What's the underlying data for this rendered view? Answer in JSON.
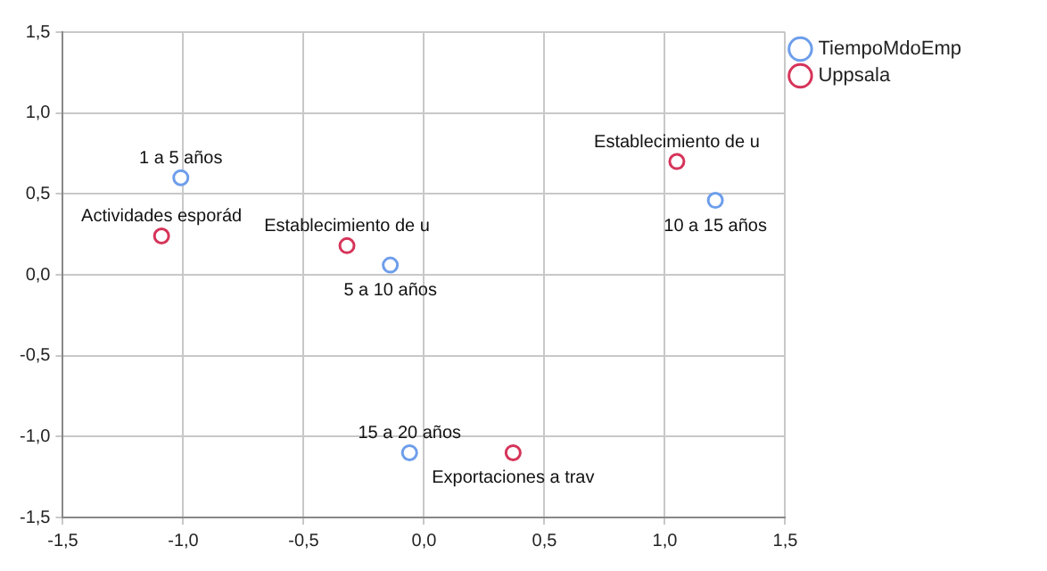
{
  "chart_data": {
    "type": "scatter",
    "xlim": [
      -1.5,
      1.5
    ],
    "ylim": [
      -1.5,
      1.5
    ],
    "xticks": [
      {
        "value": -1.5,
        "label": "-1,5"
      },
      {
        "value": -1,
        "label": "-1,0"
      },
      {
        "value": -0.5,
        "label": "-0,5"
      },
      {
        "value": 0,
        "label": "0,0"
      },
      {
        "value": 0.5,
        "label": "0,5"
      },
      {
        "value": 1,
        "label": "1,0"
      },
      {
        "value": 1.5,
        "label": "1,5"
      }
    ],
    "yticks": [
      {
        "value": -1.5,
        "label": "-1,5"
      },
      {
        "value": -1,
        "label": "-1,0"
      },
      {
        "value": -0.5,
        "label": "-0,5"
      },
      {
        "value": 0,
        "label": "0,0"
      },
      {
        "value": 0.5,
        "label": "0,5"
      },
      {
        "value": 1,
        "label": "1,0"
      },
      {
        "value": 1.5,
        "label": "1,5"
      }
    ],
    "grid": true,
    "legend": "top right",
    "marker": "circle",
    "series": [
      {
        "name": "TiempoMdoEmp",
        "color": "#6d9eeb",
        "x": [
          -1.01,
          -0.14,
          1.21,
          -0.06
        ],
        "values": [
          0.6,
          0.06,
          0.46,
          -1.1
        ]
      },
      {
        "name": "Uppsala",
        "color": "#d6345a",
        "x": [
          -1.09,
          -0.32,
          1.05,
          0.37
        ],
        "values": [
          0.24,
          0.18,
          0.7,
          -1.1
        ]
      }
    ],
    "annotations": [
      {
        "text": "1 a 5 años",
        "x": -1.01,
        "y": 0.6
      },
      {
        "text": "5 a 10 años",
        "x": -0.14,
        "y": 0.06
      },
      {
        "text": "10 a 15 años",
        "x": 1.21,
        "y": 0.46
      },
      {
        "text": "15 a 20 años",
        "x": -0.06,
        "y": -1.1
      },
      {
        "text": "Actividades esporád",
        "x": -1.09,
        "y": 0.24
      },
      {
        "text": "Establecimiento de u",
        "x": -0.32,
        "y": 0.18
      },
      {
        "text": "Establecimiento de u",
        "x": 1.05,
        "y": 0.7
      },
      {
        "text": "Exportaciones a trav",
        "x": 0.37,
        "y": -1.1
      }
    ]
  }
}
